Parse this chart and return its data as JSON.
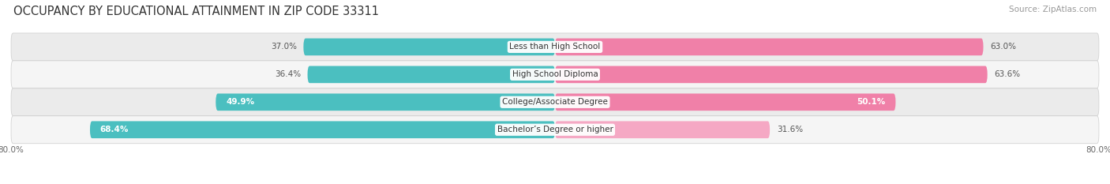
{
  "title": "OCCUPANCY BY EDUCATIONAL ATTAINMENT IN ZIP CODE 33311",
  "source": "Source: ZipAtlas.com",
  "categories": [
    "Less than High School",
    "High School Diploma",
    "College/Associate Degree",
    "Bachelor’s Degree or higher"
  ],
  "owner_values": [
    37.0,
    36.4,
    49.9,
    68.4
  ],
  "renter_values": [
    63.0,
    63.6,
    50.1,
    31.6
  ],
  "owner_color": "#4BBFC0",
  "renter_colors": [
    "#F080A8",
    "#F080A8",
    "#F080A8",
    "#F5A8C4"
  ],
  "xlim_left": -80,
  "xlim_right": 80,
  "background_color": "#FFFFFF",
  "row_bg_odd": "#EBEBEB",
  "row_bg_even": "#F5F5F5",
  "title_fontsize": 10.5,
  "source_fontsize": 7.5,
  "bar_height": 0.62,
  "owner_label_inside": [
    false,
    false,
    true,
    true
  ],
  "renter_label_inside": [
    false,
    false,
    true,
    false
  ]
}
